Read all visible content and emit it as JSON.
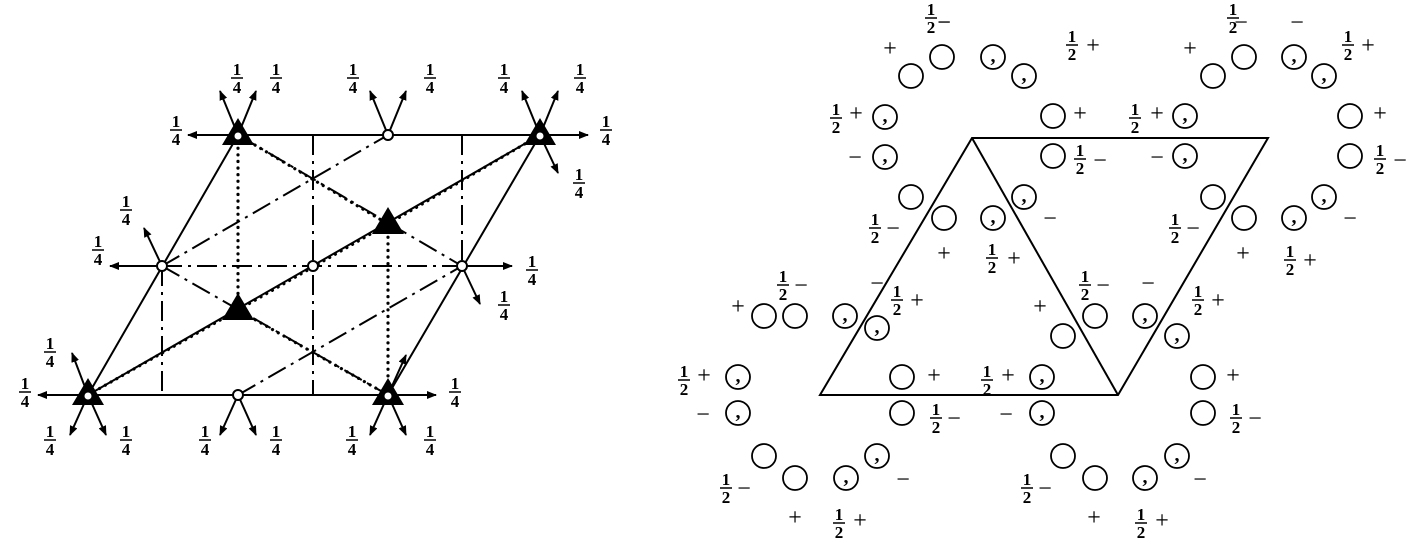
{
  "symbols": {
    "quarter": "1/4",
    "half": "1/2",
    "plus": "+",
    "minus": "−",
    "comma": ","
  },
  "diagrams": [
    {
      "name": "symmetry-element-diagram"
    },
    {
      "name": "general-position-diagram"
    }
  ]
}
